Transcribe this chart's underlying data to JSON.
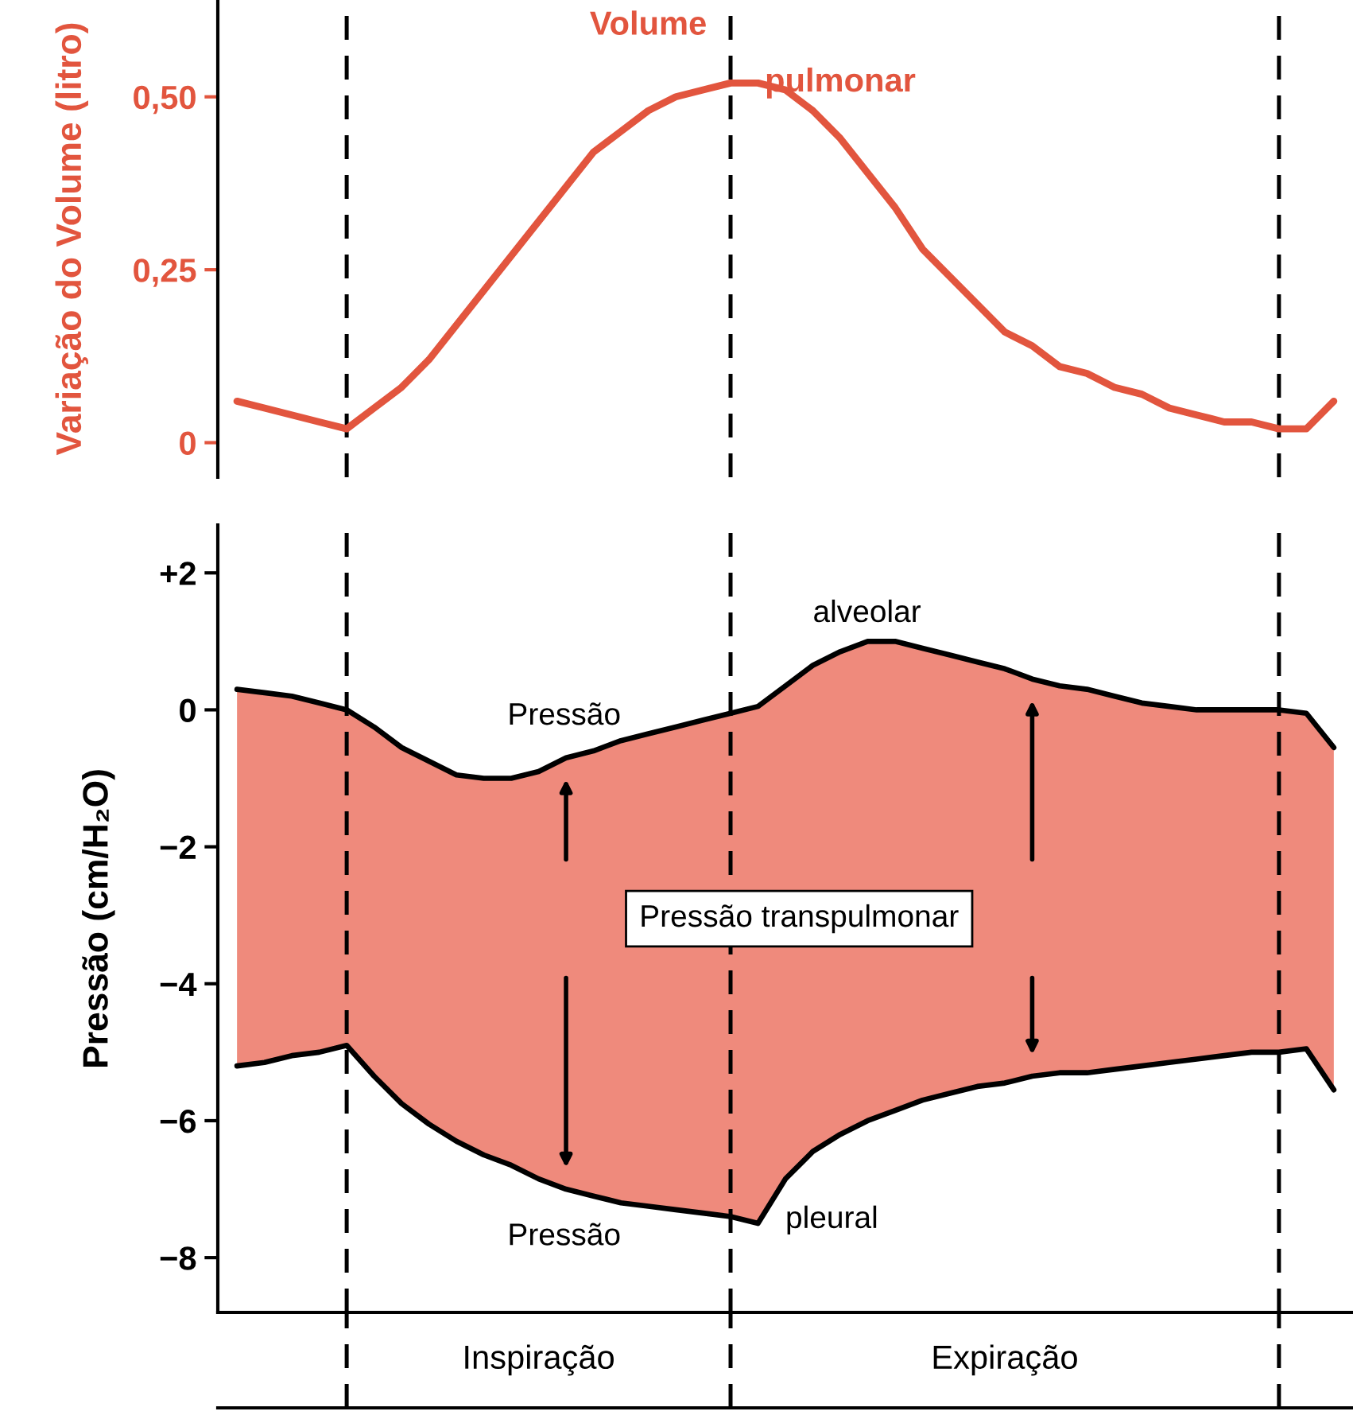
{
  "chart_data": [
    {
      "type": "line",
      "ylabel": "Variação do Volume (litro)",
      "categories": [
        null,
        null,
        null,
        null,
        null,
        null,
        null,
        null,
        null,
        null,
        null,
        null,
        null,
        null,
        null,
        null,
        null,
        null,
        null,
        null,
        null,
        null,
        null,
        null,
        null,
        null,
        null,
        null,
        null,
        null,
        null,
        null,
        null,
        null,
        null,
        null,
        null,
        null,
        null,
        null,
        null
      ],
      "series": [
        {
          "color": "#e2553e",
          "values": [
            0.06,
            0.05,
            0.04,
            0.03,
            0.02,
            0.05,
            0.08,
            0.12,
            0.17,
            0.22,
            0.27,
            0.32,
            0.37,
            0.42,
            0.45,
            0.48,
            0.5,
            0.51,
            0.52,
            0.52,
            0.51,
            0.48,
            0.44,
            0.39,
            0.34,
            0.28,
            0.24,
            0.2,
            0.16,
            0.14,
            0.11,
            0.1,
            0.08,
            0.07,
            0.05,
            0.04,
            0.03,
            0.03,
            0.02,
            0.02,
            0.06
          ]
        }
      ],
      "ylim": [
        -0.05,
        0.64
      ],
      "yticks": [
        {
          "value": 0,
          "label": "0"
        },
        {
          "value": 0.25,
          "label": "0,25"
        },
        {
          "value": 0.5,
          "label": "0,50"
        }
      ],
      "tick_labels": "y",
      "grid": "x",
      "marker": "none",
      "line_style": "solid",
      "annotations": [
        "Volume",
        "pulmonar"
      ]
    },
    {
      "type": "line",
      "ylabel": "Pressão (cm/H₂O)",
      "categories": [
        null,
        null,
        null,
        null,
        null,
        null,
        null,
        null,
        null,
        null,
        null,
        null,
        null,
        null,
        null,
        null,
        null,
        null,
        null,
        null,
        null,
        null,
        null,
        null,
        null,
        null,
        null,
        null,
        null,
        null,
        null,
        null,
        null,
        null,
        null,
        null,
        null,
        null,
        null,
        null,
        null
      ],
      "series": [
        {
          "type": "line",
          "color": "#000000",
          "lower": [
            -5.2,
            -5.15,
            -5.05,
            -5.0,
            -4.9,
            -5.35,
            -5.75,
            -6.05,
            -6.3,
            -6.5,
            -6.65,
            -6.85,
            -7.0,
            -7.1,
            -7.2,
            -7.25,
            -7.3,
            -7.35,
            -7.4,
            -7.5,
            -6.85,
            -6.45,
            -6.2,
            -6.0,
            -5.85,
            -5.7,
            -5.6,
            -5.5,
            -5.45,
            -5.35,
            -5.3,
            -5.3,
            -5.25,
            -5.2,
            -5.15,
            -5.1,
            -5.05,
            -5.0,
            -5.0,
            -4.95,
            -5.55
          ],
          "upper": [
            0.3,
            0.25,
            0.2,
            0.1,
            0,
            -0.25,
            -0.55,
            -0.75,
            -0.95,
            -1.0,
            -1.0,
            -0.9,
            -0.7,
            -0.6,
            -0.45,
            -0.35,
            -0.25,
            -0.15,
            -0.05,
            0.05,
            0.35,
            0.65,
            0.85,
            1.0,
            1.0,
            0.9,
            0.8,
            0.7,
            0.6,
            0.45,
            0.35,
            0.3,
            0.2,
            0.1,
            0.05,
            0,
            0,
            0,
            0,
            -0.05,
            -0.55
          ],
          "values": [
            0.3,
            0.25,
            0.2,
            0.1,
            0,
            -0.25,
            -0.55,
            -0.75,
            -0.95,
            -1.0,
            -1.0,
            -0.9,
            -0.7,
            -0.6,
            -0.45,
            -0.35,
            -0.25,
            -0.15,
            -0.05,
            0.05,
            0.35,
            0.65,
            0.85,
            1.0,
            1.0,
            0.9,
            0.8,
            0.7,
            0.6,
            0.45,
            0.35,
            0.3,
            0.2,
            0.1,
            0.05,
            0,
            0,
            0,
            0,
            -0.05,
            -0.55
          ]
        },
        {
          "type": "line",
          "color": "#000000",
          "values": [
            -5.2,
            -5.15,
            -5.05,
            -5.0,
            -4.9,
            -5.35,
            -5.75,
            -6.05,
            -6.3,
            -6.5,
            -6.65,
            -6.85,
            -7.0,
            -7.1,
            -7.2,
            -7.25,
            -7.3,
            -7.35,
            -7.4,
            -7.5,
            -6.85,
            -6.45,
            -6.2,
            -6.0,
            -5.85,
            -5.7,
            -5.6,
            -5.5,
            -5.45,
            -5.35,
            -5.3,
            -5.3,
            -5.25,
            -5.2,
            -5.15,
            -5.1,
            -5.05,
            -5.0,
            -5.0,
            -4.95,
            -5.55
          ]
        }
      ],
      "ylim": [
        -8.8,
        2.7
      ],
      "yticks": [
        {
          "value": 2,
          "label": "+2"
        },
        {
          "value": 0,
          "label": "0"
        },
        {
          "value": -2,
          "label": "−2"
        },
        {
          "value": -4,
          "label": "−4"
        },
        {
          "value": -6,
          "label": "−6"
        },
        {
          "value": -8,
          "label": "−8"
        }
      ],
      "tick_labels": "y",
      "grid": "x",
      "marker": "none",
      "line_style": "solid",
      "annotations": [
        "Pressão",
        "alveolar",
        "Pressão",
        "pleural",
        "Pressão transpulmonar",
        "Inspiração",
        "Expiração"
      ]
    }
  ]
}
